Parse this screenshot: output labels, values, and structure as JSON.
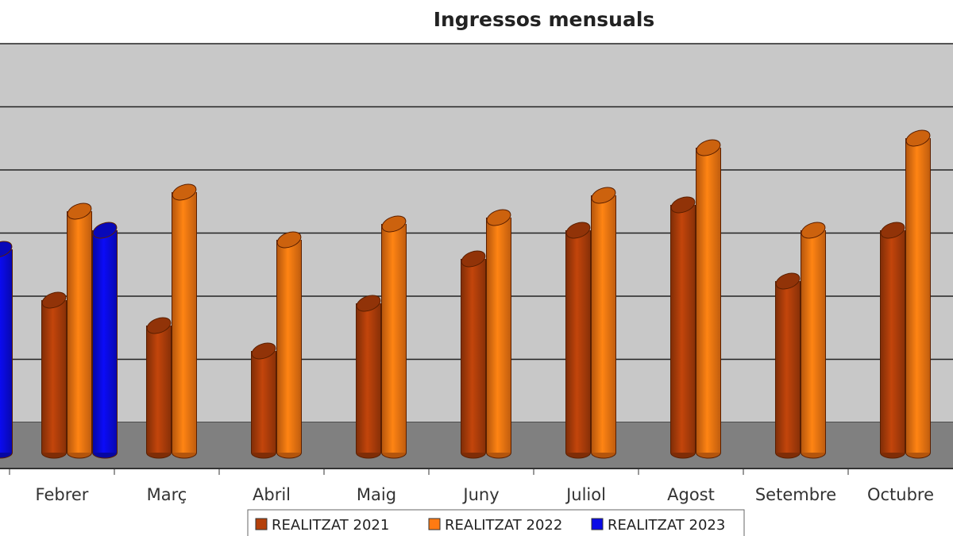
{
  "chart_data": {
    "type": "bar",
    "style": "3d-cylinder",
    "title": "Ingressos mensuals",
    "xlabel": "",
    "ylabel": "",
    "categories": [
      "",
      "Febrer",
      "Març",
      "Abril",
      "Maig",
      "Juny",
      "Juliol",
      "Agost",
      "Setembre",
      "Octubre"
    ],
    "series": [
      {
        "name": "REALITZAT 2021",
        "color": "#b5400a",
        "values": [
          null,
          2.4,
          2.0,
          1.6,
          2.35,
          3.05,
          3.5,
          3.9,
          2.7,
          3.5
        ]
      },
      {
        "name": "REALITZAT 2022",
        "color": "#ff7a12",
        "values": [
          null,
          3.8,
          4.1,
          3.35,
          3.6,
          3.7,
          4.05,
          4.8,
          3.5,
          4.95
        ]
      },
      {
        "name": "REALITZAT 2023",
        "color": "#0a0ae6",
        "values": [
          3.2,
          3.5,
          null,
          null,
          null,
          null,
          null,
          null,
          null,
          null
        ]
      }
    ],
    "ylim": [
      0,
      6.5
    ],
    "grid": true,
    "legend": "bottom",
    "wall_color": "#c8c8c8",
    "floor_color": "#808080"
  }
}
